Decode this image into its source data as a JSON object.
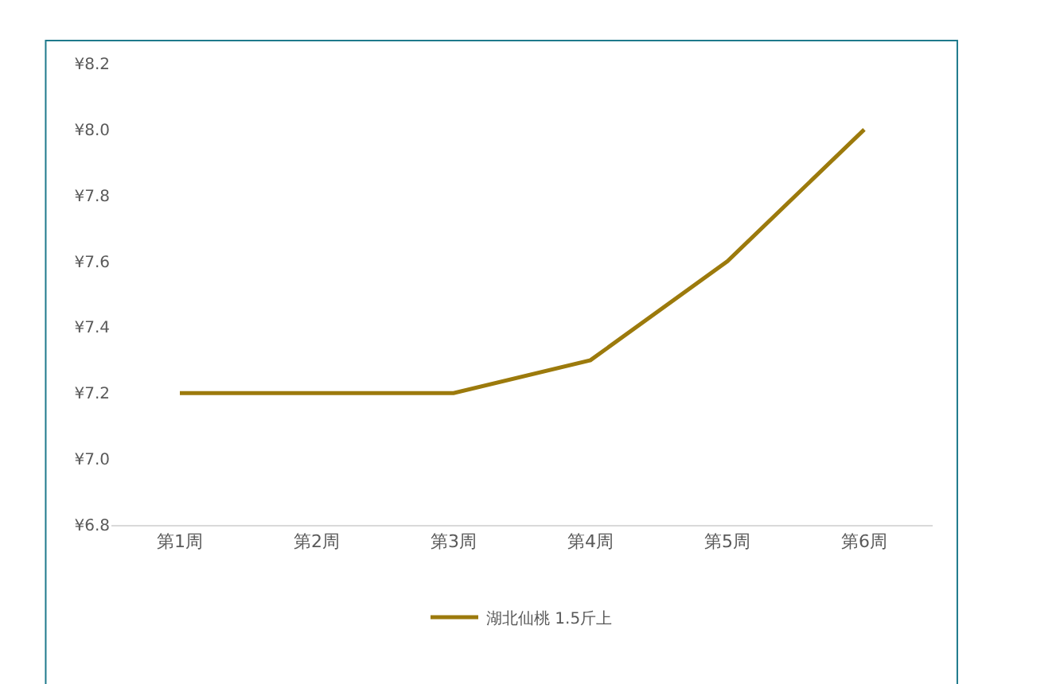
{
  "chart_data": {
    "type": "line",
    "categories": [
      "第1周",
      "第2周",
      "第3周",
      "第4周",
      "第5周",
      "第6周"
    ],
    "series": [
      {
        "name": "湖北仙桃 1.5斤上",
        "color": "#9c7a0c",
        "values": [
          7.2,
          7.2,
          7.2,
          7.3,
          7.6,
          8.0
        ]
      }
    ],
    "ylim": [
      6.8,
      8.2
    ],
    "yticks": [
      {
        "value": 6.8,
        "label": "¥6.8"
      },
      {
        "value": 7.0,
        "label": "¥7.0"
      },
      {
        "value": 7.2,
        "label": "¥7.2"
      },
      {
        "value": 7.4,
        "label": "¥7.4"
      },
      {
        "value": 7.6,
        "label": "¥7.6"
      },
      {
        "value": 7.8,
        "label": "¥7.8"
      },
      {
        "value": 8.0,
        "label": "¥8.0"
      },
      {
        "value": 8.2,
        "label": "¥8.2"
      }
    ],
    "grid": false,
    "legend": "bottom",
    "marker": "none",
    "line_style": "solid"
  }
}
